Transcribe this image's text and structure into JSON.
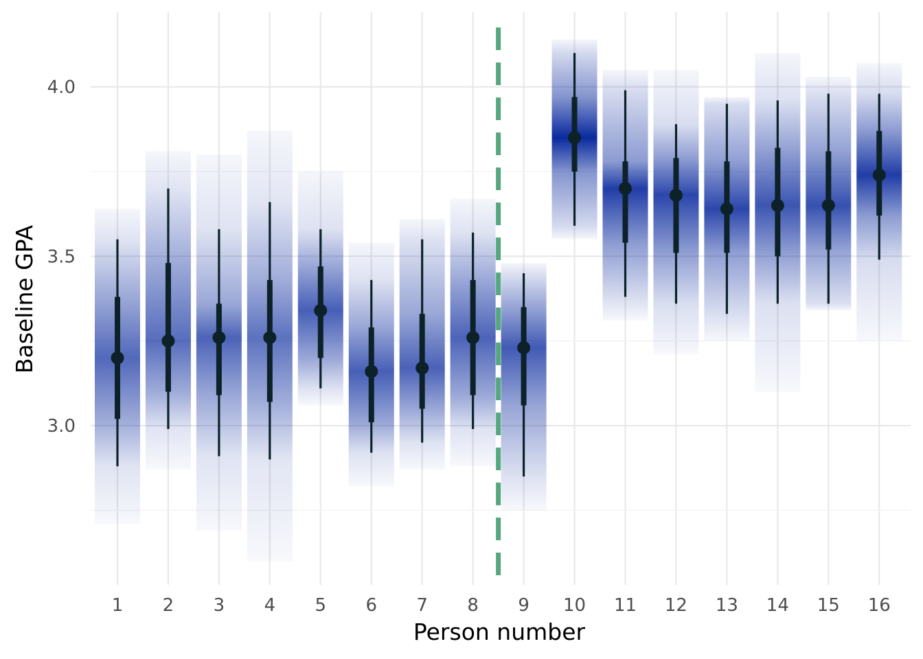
{
  "chart_data": {
    "type": "interval",
    "xlabel": "Person number",
    "ylabel": "Baseline GPA",
    "ylim": [
      2.53,
      4.22
    ],
    "y_ticks": [
      3.0,
      3.5,
      4.0
    ],
    "y_tick_labels": [
      "3.0",
      "3.5",
      "4.0"
    ],
    "categories": [
      "1",
      "2",
      "3",
      "4",
      "5",
      "6",
      "7",
      "8",
      "9",
      "10",
      "11",
      "12",
      "13",
      "14",
      "15",
      "16"
    ],
    "points": [
      {
        "x": 1,
        "mean": 3.2,
        "lo66": 3.02,
        "hi66": 3.38,
        "lo95": 2.88,
        "hi95": 3.55,
        "lo_full": 2.71,
        "hi_full": 3.64,
        "concentration": 0.35
      },
      {
        "x": 2,
        "mean": 3.25,
        "lo66": 3.1,
        "hi66": 3.48,
        "lo95": 2.99,
        "hi95": 3.7,
        "lo_full": 2.87,
        "hi_full": 3.81,
        "concentration": 0.3
      },
      {
        "x": 3,
        "mean": 3.26,
        "lo66": 3.09,
        "hi66": 3.36,
        "lo95": 2.91,
        "hi95": 3.58,
        "lo_full": 2.69,
        "hi_full": 3.8,
        "concentration": 0.4
      },
      {
        "x": 4,
        "mean": 3.26,
        "lo66": 3.07,
        "hi66": 3.43,
        "lo95": 2.9,
        "hi95": 3.66,
        "lo_full": 2.6,
        "hi_full": 3.87,
        "concentration": 0.25
      },
      {
        "x": 5,
        "mean": 3.34,
        "lo66": 3.2,
        "hi66": 3.47,
        "lo95": 3.11,
        "hi95": 3.58,
        "lo_full": 3.06,
        "hi_full": 3.75,
        "concentration": 0.45
      },
      {
        "x": 6,
        "mean": 3.16,
        "lo66": 3.01,
        "hi66": 3.29,
        "lo95": 2.92,
        "hi95": 3.43,
        "lo_full": 2.82,
        "hi_full": 3.54,
        "concentration": 0.45
      },
      {
        "x": 7,
        "mean": 3.17,
        "lo66": 3.05,
        "hi66": 3.33,
        "lo95": 2.95,
        "hi95": 3.55,
        "lo_full": 2.87,
        "hi_full": 3.61,
        "concentration": 0.42
      },
      {
        "x": 8,
        "mean": 3.26,
        "lo66": 3.09,
        "hi66": 3.43,
        "lo95": 2.99,
        "hi95": 3.57,
        "lo_full": 2.88,
        "hi_full": 3.67,
        "concentration": 0.4
      },
      {
        "x": 9,
        "mean": 3.23,
        "lo66": 3.06,
        "hi66": 3.35,
        "lo95": 2.85,
        "hi95": 3.45,
        "lo_full": 2.75,
        "hi_full": 3.48,
        "concentration": 0.5
      },
      {
        "x": 10,
        "mean": 3.85,
        "lo66": 3.75,
        "hi66": 3.97,
        "lo95": 3.59,
        "hi95": 4.1,
        "lo_full": 3.55,
        "hi_full": 4.14,
        "concentration": 1.0
      },
      {
        "x": 11,
        "mean": 3.7,
        "lo66": 3.54,
        "hi66": 3.78,
        "lo95": 3.38,
        "hi95": 3.99,
        "lo_full": 3.31,
        "hi_full": 4.05,
        "concentration": 0.8
      },
      {
        "x": 12,
        "mean": 3.68,
        "lo66": 3.51,
        "hi66": 3.79,
        "lo95": 3.36,
        "hi95": 3.89,
        "lo_full": 3.21,
        "hi_full": 4.05,
        "concentration": 0.7
      },
      {
        "x": 13,
        "mean": 3.64,
        "lo66": 3.51,
        "hi66": 3.78,
        "lo95": 3.33,
        "hi95": 3.95,
        "lo_full": 3.25,
        "hi_full": 3.97,
        "concentration": 0.7
      },
      {
        "x": 14,
        "mean": 3.65,
        "lo66": 3.5,
        "hi66": 3.82,
        "lo95": 3.36,
        "hi95": 3.96,
        "lo_full": 3.1,
        "hi_full": 4.1,
        "concentration": 0.55
      },
      {
        "x": 15,
        "mean": 3.65,
        "lo66": 3.52,
        "hi66": 3.81,
        "lo95": 3.36,
        "hi95": 3.98,
        "lo_full": 3.34,
        "hi_full": 4.03,
        "concentration": 0.6
      },
      {
        "x": 16,
        "mean": 3.74,
        "lo66": 3.62,
        "hi66": 3.87,
        "lo95": 3.49,
        "hi95": 3.98,
        "lo_full": 3.25,
        "hi_full": 4.07,
        "concentration": 0.8
      }
    ],
    "vline": {
      "x": 8.5,
      "style": "dashed",
      "color": "#55a87e"
    },
    "colors": {
      "density": "#0a2a9e",
      "interval": "#0c2228",
      "grid_major": "#e8e8e8",
      "grid_minor": "#f2f2f2"
    }
  }
}
